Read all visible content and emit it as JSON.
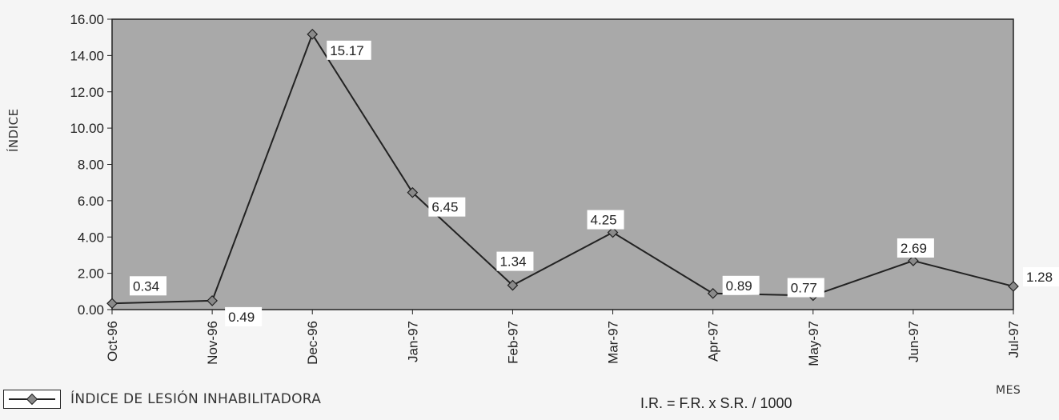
{
  "chart_data": {
    "type": "line",
    "title": "",
    "xlabel": "MES",
    "ylabel": "ÍNDICE",
    "categories": [
      "Oct-96",
      "Nov-96",
      "Dec-96",
      "Jan-97",
      "Feb-97",
      "Mar-97",
      "Apr-97",
      "May-97",
      "Jun-97",
      "Jul-97"
    ],
    "series": [
      {
        "name": "ÍNDICE DE LESIÓN INHABILITADORA",
        "values": [
          0.34,
          0.49,
          15.17,
          6.45,
          1.34,
          4.25,
          0.89,
          0.77,
          2.69,
          1.28
        ],
        "labels": [
          "0.34",
          "0.49",
          "15.17",
          "6.45",
          "1.34",
          "4.25",
          "0.89",
          "0.77",
          "2.69",
          "1.28"
        ],
        "color": "#222222",
        "marker": "diamond"
      }
    ],
    "ylim": [
      0,
      16
    ],
    "yticks": [
      "0.00",
      "2.00",
      "4.00",
      "6.00",
      "8.00",
      "10.00",
      "12.00",
      "14.00",
      "16.00"
    ],
    "grid": false,
    "legend_position": "bottom-left",
    "plot_background": "#a9a9a9",
    "annotation": "I.R. = F.R. x S.R. / 1000"
  }
}
